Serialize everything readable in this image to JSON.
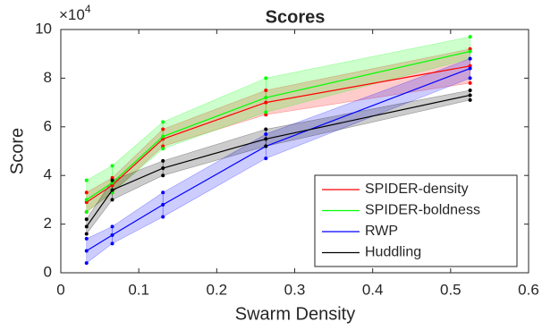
{
  "chart_data": {
    "type": "line",
    "title": "Scores",
    "xlabel": "Swarm Density",
    "ylabel": "Score",
    "y_multiplier": "×10",
    "y_multiplier_exponent": "4",
    "x": [
      0.033,
      0.066,
      0.131,
      0.263,
      0.525
    ],
    "series": [
      {
        "name": "SPIDER-density",
        "color": "#ff0000",
        "values": [
          2.9,
          3.6,
          5.5,
          7.0,
          8.5
        ],
        "lower": [
          2.5,
          3.3,
          5.2,
          6.5,
          7.8
        ],
        "upper": [
          3.3,
          3.9,
          5.9,
          7.5,
          9.2
        ]
      },
      {
        "name": "SPIDER-boldness",
        "color": "#00ff00",
        "values": [
          3.0,
          3.7,
          5.6,
          7.2,
          9.1
        ],
        "lower": [
          2.5,
          3.3,
          5.1,
          6.6,
          8.8
        ],
        "upper": [
          3.8,
          4.4,
          6.2,
          8.0,
          9.7
        ]
      },
      {
        "name": "RWP",
        "color": "#0000ff",
        "values": [
          0.9,
          1.55,
          2.8,
          5.2,
          8.4
        ],
        "lower": [
          0.4,
          1.2,
          2.3,
          4.7,
          8.0
        ],
        "upper": [
          1.4,
          1.9,
          3.3,
          5.7,
          8.8
        ]
      },
      {
        "name": "Huddling",
        "color": "#000000",
        "values": [
          1.9,
          3.4,
          4.3,
          5.5,
          7.3
        ],
        "lower": [
          1.6,
          3.0,
          4.0,
          5.2,
          7.1
        ],
        "upper": [
          2.2,
          3.8,
          4.6,
          5.9,
          7.5
        ]
      }
    ],
    "xlim": [
      0,
      0.6
    ],
    "xticks": [
      0,
      0.1,
      0.2,
      0.3,
      0.4,
      0.5,
      0.6
    ],
    "ylim": [
      0,
      10
    ],
    "yticks": [
      0,
      2,
      4,
      6,
      8,
      10
    ],
    "legend": "lower-right"
  }
}
